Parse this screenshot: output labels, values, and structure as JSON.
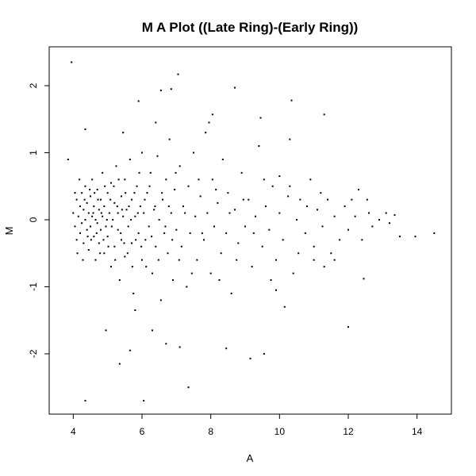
{
  "chart_data": {
    "type": "scatter",
    "title": "M A Plot ((Late Ring)-(Early Ring))",
    "xlabel": "A",
    "ylabel": "M",
    "xlim": [
      3.3,
      15.0
    ],
    "ylim": [
      -2.9,
      2.58
    ],
    "xticks": [
      4,
      6,
      8,
      10,
      12,
      14
    ],
    "yticks": [
      -2,
      -1,
      0,
      1,
      2
    ],
    "grid": false,
    "legend": "none",
    "point_color": "#000000",
    "points": [
      [
        3.95,
        2.35
      ],
      [
        7.05,
        2.17
      ],
      [
        6.55,
        1.93
      ],
      [
        6.85,
        1.95
      ],
      [
        8.7,
        1.97
      ],
      [
        5.9,
        1.77
      ],
      [
        10.35,
        1.78
      ],
      [
        11.3,
        1.57
      ],
      [
        8.05,
        1.57
      ],
      [
        7.95,
        1.45
      ],
      [
        6.4,
        1.45
      ],
      [
        4.35,
        1.35
      ],
      [
        5.45,
        1.3
      ],
      [
        10.3,
        1.2
      ],
      [
        9.45,
        1.52
      ],
      [
        3.85,
        0.9
      ],
      [
        12.0,
        -1.6
      ],
      [
        4.35,
        -2.7
      ],
      [
        6.05,
        -2.7
      ],
      [
        7.35,
        -2.5
      ],
      [
        5.35,
        -2.15
      ],
      [
        5.65,
        -1.95
      ],
      [
        8.45,
        -1.92
      ],
      [
        9.15,
        -2.07
      ],
      [
        9.55,
        -2.0
      ],
      [
        10.15,
        -1.3
      ],
      [
        12.45,
        -0.88
      ],
      [
        14.5,
        -0.2
      ],
      [
        13.95,
        -0.25
      ],
      [
        13.5,
        -0.25
      ],
      [
        13.1,
        0.1
      ],
      [
        13.35,
        0.07
      ],
      [
        12.3,
        0.45
      ],
      [
        10.0,
        0.65
      ],
      [
        9.9,
        -1.05
      ],
      [
        6.3,
        -1.65
      ],
      [
        4.95,
        -1.65
      ],
      [
        7.1,
        -1.9
      ],
      [
        6.7,
        -1.85
      ],
      [
        5.8,
        -1.35
      ],
      [
        11.0,
        -0.6
      ],
      [
        11.3,
        -0.7
      ],
      [
        4.0,
        0.1
      ],
      [
        4.05,
        -0.1
      ],
      [
        4.1,
        0.3
      ],
      [
        4.1,
        -0.3
      ],
      [
        4.15,
        0.05
      ],
      [
        4.2,
        0.2
      ],
      [
        4.2,
        -0.2
      ],
      [
        4.25,
        0.4
      ],
      [
        4.25,
        -0.05
      ],
      [
        4.3,
        0.15
      ],
      [
        4.3,
        -0.35
      ],
      [
        4.35,
        0.0
      ],
      [
        4.35,
        0.5
      ],
      [
        4.4,
        -0.15
      ],
      [
        4.4,
        0.25
      ],
      [
        4.45,
        0.1
      ],
      [
        4.45,
        -0.45
      ],
      [
        4.5,
        0.35
      ],
      [
        4.5,
        -0.1
      ],
      [
        4.55,
        0.05
      ],
      [
        4.55,
        0.6
      ],
      [
        4.6,
        -0.25
      ],
      [
        4.6,
        0.2
      ],
      [
        4.65,
        -0.6
      ],
      [
        4.65,
        0.0
      ],
      [
        4.7,
        0.45
      ],
      [
        4.7,
        -0.05
      ],
      [
        4.75,
        0.15
      ],
      [
        4.75,
        -0.35
      ],
      [
        4.8,
        0.3
      ],
      [
        4.8,
        -0.15
      ],
      [
        4.85,
        0.7
      ],
      [
        4.85,
        0.05
      ],
      [
        4.9,
        -0.5
      ],
      [
        4.9,
        0.2
      ],
      [
        4.95,
        -0.1
      ],
      [
        5.0,
        0.4
      ],
      [
        5.0,
        -0.25
      ],
      [
        5.05,
        0.1
      ],
      [
        5.1,
        -0.7
      ],
      [
        5.1,
        0.55
      ],
      [
        5.15,
        0.0
      ],
      [
        5.2,
        -0.4
      ],
      [
        5.2,
        0.25
      ],
      [
        5.25,
        0.8
      ],
      [
        5.3,
        -0.15
      ],
      [
        5.3,
        0.1
      ],
      [
        5.35,
        -0.9
      ],
      [
        5.4,
        0.35
      ],
      [
        5.4,
        -0.3
      ],
      [
        5.45,
        0.05
      ],
      [
        5.5,
        0.6
      ],
      [
        5.5,
        -0.55
      ],
      [
        5.55,
        0.15
      ],
      [
        5.6,
        -0.1
      ],
      [
        5.65,
        0.9
      ],
      [
        5.7,
        -0.35
      ],
      [
        5.7,
        0.3
      ],
      [
        5.75,
        -1.1
      ],
      [
        5.8,
        0.05
      ],
      [
        5.85,
        0.5
      ],
      [
        5.9,
        -0.2
      ],
      [
        5.95,
        0.2
      ],
      [
        6.0,
        -0.6
      ],
      [
        6.0,
        1.0
      ],
      [
        6.05,
        0.1
      ],
      [
        6.1,
        -0.3
      ],
      [
        6.15,
        0.4
      ],
      [
        6.2,
        -0.1
      ],
      [
        6.25,
        0.7
      ],
      [
        6.3,
        -0.8
      ],
      [
        6.35,
        0.15
      ],
      [
        6.4,
        -0.4
      ],
      [
        6.45,
        0.95
      ],
      [
        6.5,
        0.0
      ],
      [
        6.55,
        -1.2
      ],
      [
        6.6,
        0.3
      ],
      [
        6.65,
        -0.2
      ],
      [
        6.7,
        0.6
      ],
      [
        6.75,
        -0.5
      ],
      [
        6.8,
        1.2
      ],
      [
        6.85,
        0.1
      ],
      [
        6.9,
        -0.9
      ],
      [
        6.95,
        0.45
      ],
      [
        7.0,
        -0.15
      ],
      [
        7.1,
        0.8
      ],
      [
        7.15,
        -0.4
      ],
      [
        7.2,
        0.2
      ],
      [
        7.3,
        -1.0
      ],
      [
        7.35,
        0.5
      ],
      [
        7.4,
        -0.2
      ],
      [
        7.5,
        1.0
      ],
      [
        7.55,
        0.05
      ],
      [
        7.6,
        -0.6
      ],
      [
        7.7,
        0.35
      ],
      [
        7.8,
        -0.3
      ],
      [
        7.85,
        1.3
      ],
      [
        7.9,
        0.1
      ],
      [
        8.0,
        -0.8
      ],
      [
        8.05,
        0.6
      ],
      [
        8.1,
        -0.1
      ],
      [
        8.2,
        0.25
      ],
      [
        8.3,
        -0.5
      ],
      [
        8.35,
        0.9
      ],
      [
        8.45,
        -0.2
      ],
      [
        8.5,
        0.4
      ],
      [
        8.6,
        -1.1
      ],
      [
        8.7,
        0.15
      ],
      [
        8.8,
        -0.35
      ],
      [
        8.9,
        0.7
      ],
      [
        9.0,
        -0.1
      ],
      [
        9.1,
        0.3
      ],
      [
        9.2,
        -0.7
      ],
      [
        9.3,
        0.05
      ],
      [
        9.4,
        1.1
      ],
      [
        9.5,
        -0.4
      ],
      [
        9.6,
        0.2
      ],
      [
        9.7,
        -0.15
      ],
      [
        9.8,
        0.5
      ],
      [
        9.9,
        -0.6
      ],
      [
        10.0,
        0.1
      ],
      [
        10.1,
        -0.3
      ],
      [
        10.25,
        0.35
      ],
      [
        10.4,
        -0.8
      ],
      [
        10.5,
        0.0
      ],
      [
        10.6,
        0.3
      ],
      [
        10.75,
        -0.2
      ],
      [
        10.9,
        0.6
      ],
      [
        11.0,
        -0.4
      ],
      [
        11.1,
        0.15
      ],
      [
        11.25,
        -0.1
      ],
      [
        11.4,
        0.3
      ],
      [
        11.5,
        -0.5
      ],
      [
        11.6,
        0.05
      ],
      [
        11.75,
        -0.3
      ],
      [
        11.9,
        0.2
      ],
      [
        12.0,
        -0.15
      ],
      [
        12.2,
        0.05
      ],
      [
        12.4,
        -0.3
      ],
      [
        12.55,
        0.3
      ],
      [
        12.7,
        -0.1
      ],
      [
        12.9,
        0.0
      ],
      [
        13.2,
        -0.05
      ],
      [
        4.05,
        0.4
      ],
      [
        4.12,
        -0.5
      ],
      [
        4.18,
        0.6
      ],
      [
        4.28,
        -0.6
      ],
      [
        4.33,
        0.3
      ],
      [
        4.42,
        -0.25
      ],
      [
        4.48,
        0.45
      ],
      [
        4.52,
        -0.3
      ],
      [
        4.58,
        0.1
      ],
      [
        4.62,
        0.4
      ],
      [
        4.68,
        -0.2
      ],
      [
        4.72,
        0.3
      ],
      [
        4.78,
        -0.5
      ],
      [
        4.82,
        0.1
      ],
      [
        4.88,
        -0.3
      ],
      [
        4.92,
        0.5
      ],
      [
        4.98,
        0.0
      ],
      [
        5.02,
        -0.4
      ],
      [
        5.08,
        0.3
      ],
      [
        5.12,
        -0.1
      ],
      [
        5.18,
        0.5
      ],
      [
        5.22,
        -0.6
      ],
      [
        5.28,
        0.2
      ],
      [
        5.32,
        0.6
      ],
      [
        5.38,
        -0.2
      ],
      [
        5.42,
        0.15
      ],
      [
        5.48,
        -0.35
      ],
      [
        5.52,
        0.4
      ],
      [
        5.58,
        -0.5
      ],
      [
        5.62,
        0.2
      ],
      [
        5.68,
        0.0
      ],
      [
        5.72,
        -0.7
      ],
      [
        5.78,
        0.4
      ],
      [
        5.82,
        -0.3
      ],
      [
        5.88,
        0.1
      ],
      [
        5.92,
        0.7
      ],
      [
        5.98,
        -0.4
      ],
      [
        6.08,
        0.3
      ],
      [
        6.12,
        -0.7
      ],
      [
        6.22,
        0.5
      ],
      [
        6.28,
        -0.25
      ],
      [
        6.38,
        0.2
      ],
      [
        6.48,
        -0.6
      ],
      [
        6.58,
        0.4
      ],
      [
        6.68,
        -0.1
      ],
      [
        6.78,
        0.2
      ],
      [
        6.88,
        -0.3
      ],
      [
        6.98,
        0.7
      ],
      [
        7.08,
        -0.6
      ],
      [
        7.25,
        0.1
      ],
      [
        7.45,
        -0.8
      ],
      [
        7.65,
        0.6
      ],
      [
        7.75,
        -0.2
      ],
      [
        8.15,
        0.45
      ],
      [
        8.25,
        -0.9
      ],
      [
        8.55,
        0.1
      ],
      [
        8.75,
        -0.6
      ],
      [
        8.95,
        0.3
      ],
      [
        9.25,
        -0.2
      ],
      [
        9.55,
        0.6
      ],
      [
        9.75,
        -0.9
      ],
      [
        10.3,
        0.5
      ],
      [
        10.55,
        -0.5
      ],
      [
        10.8,
        0.2
      ],
      [
        11.2,
        0.4
      ],
      [
        11.6,
        -0.6
      ],
      [
        12.1,
        0.3
      ],
      [
        12.6,
        0.1
      ]
    ]
  }
}
